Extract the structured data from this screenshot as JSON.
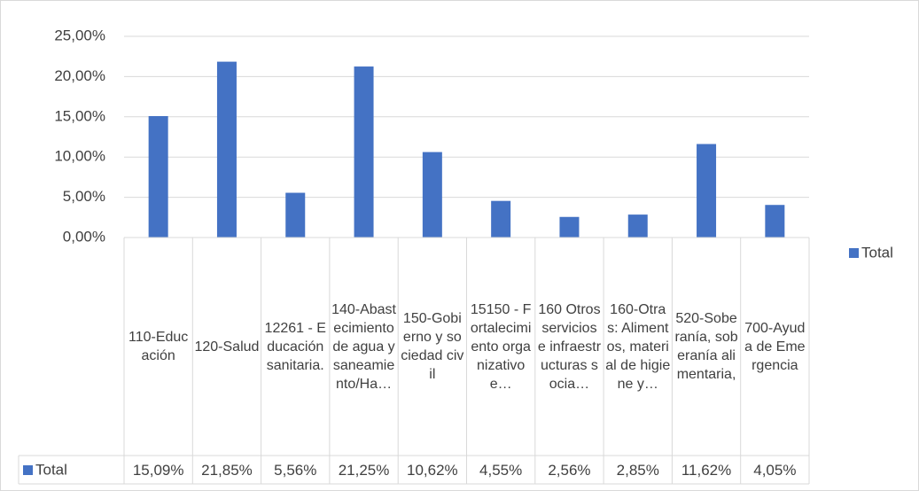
{
  "chart_data": {
    "type": "bar",
    "categories": [
      "110-Educación",
      "120-Salud",
      "12261 - Educación sanitaria.",
      "140-Abastecimiento de agua y saneamiento/Ha…",
      "150-Gobierno y sociedad civil",
      "15150 - Fortalecimiento organizativo e…",
      "160 Otros servicios e infraestructuras socia…",
      "160-Otras: Alimentos, material de higiene y…",
      "520-Soberanía, soberanía alimentaria,",
      "700-Ayuda de Emergencia"
    ],
    "series": [
      {
        "name": "Total",
        "color": "#4472c4",
        "values": [
          15.09,
          21.85,
          5.56,
          21.25,
          10.62,
          4.55,
          2.56,
          2.85,
          11.62,
          4.05
        ],
        "value_labels": [
          "15,09%",
          "21,85%",
          "5,56%",
          "21,25%",
          "10,62%",
          "4,55%",
          "2,56%",
          "2,85%",
          "11,62%",
          "4,05%"
        ]
      }
    ],
    "ylim": [
      0,
      25
    ],
    "yticks": [
      {
        "value": 0,
        "label": "0,00%"
      },
      {
        "value": 5,
        "label": "5,00%"
      },
      {
        "value": 10,
        "label": "10,00%"
      },
      {
        "value": 15,
        "label": "15,00%"
      },
      {
        "value": 20,
        "label": "20,00%"
      },
      {
        "value": 25,
        "label": "25,00%"
      }
    ],
    "grid": true,
    "legend": "right",
    "data_table": true
  }
}
